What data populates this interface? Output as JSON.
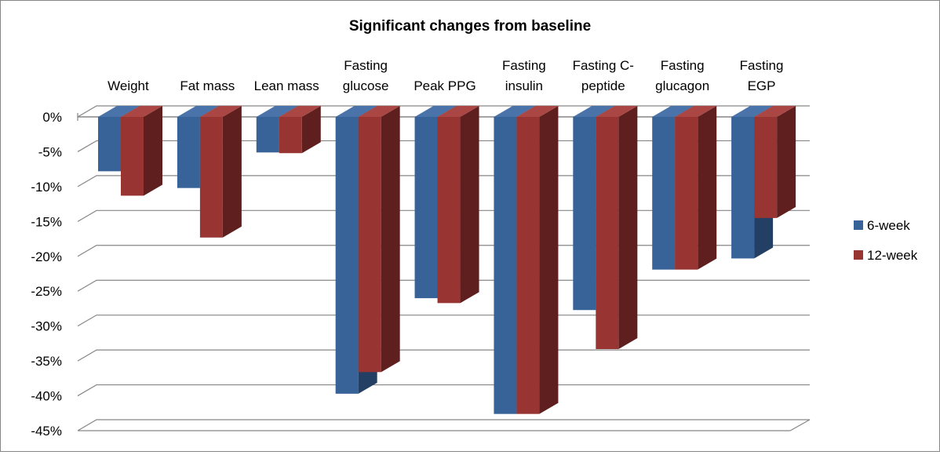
{
  "chart_data": {
    "type": "bar",
    "title": "Significant changes from baseline",
    "categories": [
      [
        "Weight"
      ],
      [
        "Fat mass"
      ],
      [
        "Lean mass"
      ],
      [
        "Fasting",
        "glucose"
      ],
      [
        "Peak PPG"
      ],
      [
        "Fasting",
        "insulin"
      ],
      [
        "Fasting C-",
        "peptide"
      ],
      [
        "Fasting",
        "glucagon"
      ],
      [
        "Fasting",
        "EGP"
      ]
    ],
    "series": [
      {
        "name": "6-week",
        "color": "#386399",
        "side": "#233F63",
        "top": "#4A74A9",
        "values": [
          -7.8,
          -10.2,
          -5.1,
          -39.7,
          -26.0,
          -42.6,
          -27.7,
          -21.9,
          -20.3
        ]
      },
      {
        "name": "12-week",
        "color": "#983432",
        "side": "#5F1F1E",
        "top": "#AA4644",
        "values": [
          -11.3,
          -17.3,
          -5.2,
          -36.6,
          -26.7,
          -42.6,
          -33.3,
          -21.9,
          -14.5
        ]
      }
    ],
    "y_ticks": [
      "0%",
      "-5%",
      "-10%",
      "-15%",
      "-20%",
      "-25%",
      "-30%",
      "-35%",
      "-40%",
      "-45%"
    ],
    "ylim": [
      -45,
      0
    ],
    "grid": true,
    "legend_position": "right"
  }
}
